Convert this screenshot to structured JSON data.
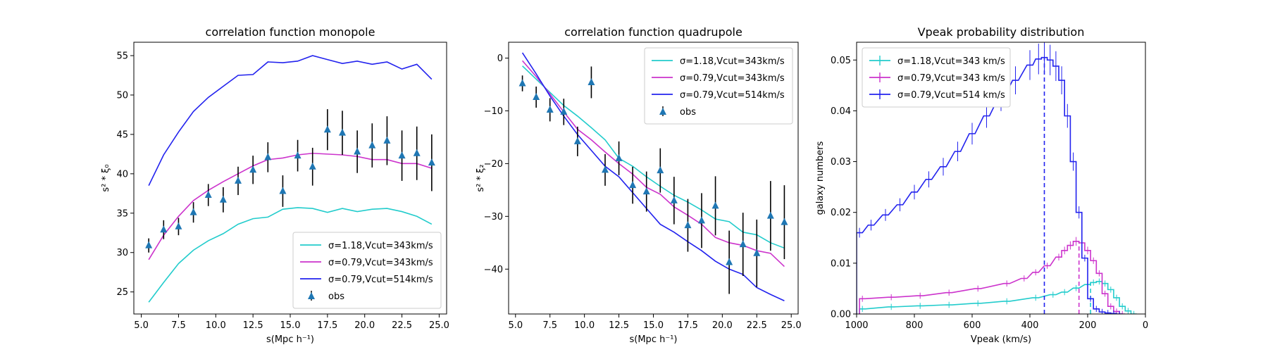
{
  "colors": {
    "cyan": "#22cccc",
    "magenta": "#cc33cc",
    "blue": "#2222ee",
    "obs": "#1f77b4",
    "errorbar": "#000000"
  },
  "chart_data": [
    {
      "type": "line",
      "title": "correlation function monopole",
      "xlabel": "s(Mpc h⁻¹)",
      "ylabel": "s² * ξ₀",
      "xlim": [
        4.5,
        25.5
      ],
      "ylim": [
        22.2,
        56.7
      ],
      "xticks": [
        5.0,
        7.5,
        10.0,
        12.5,
        15.0,
        17.5,
        20.0,
        22.5,
        25.0
      ],
      "xtick_labels": [
        "5.0",
        "7.5",
        "10.0",
        "12.5",
        "15.0",
        "17.5",
        "20.0",
        "22.5",
        "25.0"
      ],
      "yticks": [
        25,
        30,
        35,
        40,
        45,
        50,
        55
      ],
      "ytick_labels": [
        "25",
        "30",
        "35",
        "40",
        "45",
        "50",
        "55"
      ],
      "legend_position": "lower-right",
      "x": [
        5.5,
        6.5,
        7.5,
        8.5,
        9.5,
        10.5,
        11.5,
        12.5,
        13.5,
        14.5,
        15.5,
        16.5,
        17.5,
        18.5,
        19.5,
        20.5,
        21.5,
        22.5,
        23.5,
        24.5
      ],
      "series": [
        {
          "name": "σ=1.18,Vcut=343km/s",
          "color": "#22cccc",
          "values": [
            23.7,
            26.2,
            28.6,
            30.3,
            31.5,
            32.4,
            33.6,
            34.3,
            34.5,
            35.5,
            35.7,
            35.6,
            35.1,
            35.6,
            35.2,
            35.5,
            35.6,
            35.2,
            34.6,
            33.6
          ]
        },
        {
          "name": "σ=0.79,Vcut=343km/s",
          "color": "#cc33cc",
          "values": [
            29.1,
            32.2,
            34.6,
            36.6,
            37.9,
            39.0,
            40.0,
            41.0,
            41.8,
            42.0,
            42.4,
            42.6,
            42.5,
            42.4,
            42.2,
            41.8,
            41.8,
            41.3,
            41.3,
            40.7
          ]
        },
        {
          "name": "σ=0.79,Vcut=514km/s",
          "color": "#2222ee",
          "values": [
            38.5,
            42.4,
            45.3,
            47.9,
            49.7,
            51.1,
            52.5,
            52.6,
            54.2,
            54.1,
            54.3,
            55.0,
            54.5,
            54.0,
            54.3,
            53.9,
            54.2,
            53.3,
            53.9,
            52.0
          ]
        },
        {
          "name": "obs",
          "kind": "errorbar",
          "color": "#1f77b4",
          "values": [
            30.9,
            32.9,
            33.3,
            35.1,
            37.3,
            36.7,
            39.1,
            40.5,
            42.1,
            37.8,
            42.3,
            40.9,
            45.6,
            45.2,
            42.8,
            43.6,
            44.2,
            42.3,
            42.6,
            41.4
          ],
          "errors": [
            0.9,
            1.2,
            1.1,
            1.3,
            1.4,
            1.6,
            1.8,
            1.8,
            1.9,
            2.0,
            2.0,
            2.4,
            2.6,
            2.8,
            2.7,
            2.8,
            3.1,
            3.2,
            3.4,
            3.6
          ]
        }
      ]
    },
    {
      "type": "line",
      "title": "correlation function quadrupole",
      "xlabel": "s(Mpc h⁻¹)",
      "ylabel": "s² * ξ₂",
      "xlim": [
        4.5,
        25.5
      ],
      "ylim": [
        -48.5,
        3.0
      ],
      "xticks": [
        5.0,
        7.5,
        10.0,
        12.5,
        15.0,
        17.5,
        20.0,
        22.5,
        25.0
      ],
      "xtick_labels": [
        "5.0",
        "7.5",
        "10.0",
        "12.5",
        "15.0",
        "17.5",
        "20.0",
        "22.5",
        "25.0"
      ],
      "yticks": [
        0,
        -10,
        -20,
        -30,
        -40
      ],
      "ytick_labels": [
        "0",
        "−10",
        "−20",
        "−30",
        "−40"
      ],
      "legend_position": "upper-right",
      "x": [
        5.5,
        6.5,
        7.5,
        8.5,
        9.5,
        10.5,
        11.5,
        12.5,
        13.5,
        14.5,
        15.5,
        16.5,
        17.5,
        18.5,
        19.5,
        20.5,
        21.5,
        22.5,
        23.5,
        24.5
      ],
      "series": [
        {
          "name": "σ=1.18,Vcut=343km/s",
          "color": "#22cccc",
          "values": [
            -1.5,
            -4.0,
            -6.5,
            -9.0,
            -11.0,
            -13.2,
            -15.5,
            -19.0,
            -20.5,
            -22.5,
            -24.3,
            -26.0,
            -27.3,
            -28.8,
            -30.5,
            -31.0,
            -33.0,
            -33.5,
            -35.0,
            -36.0
          ]
        },
        {
          "name": "σ=0.79,Vcut=343km/s",
          "color": "#cc33cc",
          "values": [
            -0.5,
            -3.5,
            -6.8,
            -10.2,
            -13.5,
            -15.5,
            -17.8,
            -20.0,
            -22.0,
            -24.5,
            -25.8,
            -28.2,
            -29.8,
            -31.5,
            -34.0,
            -35.0,
            -35.5,
            -36.5,
            -37.0,
            -39.5
          ]
        },
        {
          "name": "σ=0.79,Vcut=514km/s",
          "color": "#2222ee",
          "values": [
            1.0,
            -3.0,
            -7.2,
            -11.0,
            -14.5,
            -17.5,
            -20.5,
            -22.5,
            -25.5,
            -28.5,
            -31.5,
            -33.0,
            -34.8,
            -36.5,
            -38.5,
            -40.0,
            -41.0,
            -43.5,
            -44.8,
            -46.0
          ]
        },
        {
          "name": "obs",
          "kind": "errorbar",
          "color": "#1f77b4",
          "values": [
            -4.8,
            -7.4,
            -9.8,
            -10.2,
            -15.8,
            -4.6,
            -21.2,
            -19.0,
            -24.1,
            -25.3,
            -21.3,
            -27.0,
            -31.7,
            -30.8,
            -28.0,
            -38.7,
            -35.3,
            -37.0,
            -29.9,
            -31.1
          ],
          "errors": [
            1.5,
            2.0,
            2.2,
            2.5,
            2.8,
            3.0,
            3.0,
            3.2,
            3.5,
            3.8,
            4.2,
            4.5,
            5.0,
            5.2,
            5.6,
            6.0,
            6.0,
            6.4,
            6.6,
            7.0
          ]
        }
      ]
    },
    {
      "type": "line",
      "subtype": "step-histogram",
      "title": "Vpeak probability distribution",
      "xlabel": "Vpeak (km/s)",
      "ylabel": "galaxy numbers",
      "xlim": [
        1000,
        0
      ],
      "ylim": [
        0,
        0.0535
      ],
      "xticks": [
        1000,
        800,
        600,
        400,
        200,
        0
      ],
      "xtick_labels": [
        "1000",
        "800",
        "600",
        "400",
        "200",
        "0"
      ],
      "yticks": [
        0,
        0.01,
        0.02,
        0.03,
        0.04,
        0.05
      ],
      "ytick_labels": [
        "0.00",
        "0.01",
        "0.02",
        "0.03",
        "0.04",
        "0.05"
      ],
      "legend_position": "upper-left",
      "bin_width": 20,
      "series": [
        {
          "name": "σ=1.18,Vcut=343 km/s",
          "color": "#22cccc",
          "peak_marker": 190,
          "x": [
            980,
            880,
            780,
            680,
            580,
            480,
            380,
            320,
            280,
            240,
            200,
            180,
            160,
            140,
            120,
            100,
            80,
            60,
            40
          ],
          "values": [
            0.001,
            0.0014,
            0.0016,
            0.0018,
            0.0021,
            0.0025,
            0.0032,
            0.0038,
            0.0043,
            0.0051,
            0.0058,
            0.0062,
            0.0064,
            0.006,
            0.0048,
            0.0032,
            0.0015,
            0.0006,
            0.0
          ]
        },
        {
          "name": "σ=0.79,Vcut=343 km/s",
          "color": "#cc33cc",
          "peak_marker": 230,
          "x": [
            980,
            880,
            780,
            680,
            580,
            480,
            420,
            380,
            340,
            300,
            280,
            260,
            240,
            220,
            200,
            180,
            160,
            140,
            120,
            100,
            80
          ],
          "values": [
            0.003,
            0.0033,
            0.0036,
            0.0042,
            0.005,
            0.006,
            0.007,
            0.0082,
            0.0095,
            0.0112,
            0.0125,
            0.0135,
            0.0143,
            0.014,
            0.0125,
            0.0105,
            0.008,
            0.004,
            0.0015,
            0.0005,
            0.0
          ]
        },
        {
          "name": "σ=0.79,Vcut=514 km/s",
          "color": "#2222ee",
          "peak_marker": 350,
          "x": [
            990,
            950,
            900,
            850,
            800,
            750,
            700,
            650,
            600,
            550,
            500,
            450,
            400,
            370,
            350,
            330,
            310,
            290,
            270,
            250,
            230,
            210,
            190,
            170,
            150,
            130,
            110,
            90
          ],
          "values": [
            0.016,
            0.0175,
            0.0195,
            0.0215,
            0.024,
            0.0265,
            0.029,
            0.032,
            0.0355,
            0.039,
            0.0425,
            0.046,
            0.049,
            0.0502,
            0.0505,
            0.05,
            0.0488,
            0.046,
            0.039,
            0.03,
            0.02,
            0.011,
            0.003,
            0.001,
            0.0004,
            0.0002,
            0.0001,
            0.0
          ]
        }
      ]
    }
  ]
}
